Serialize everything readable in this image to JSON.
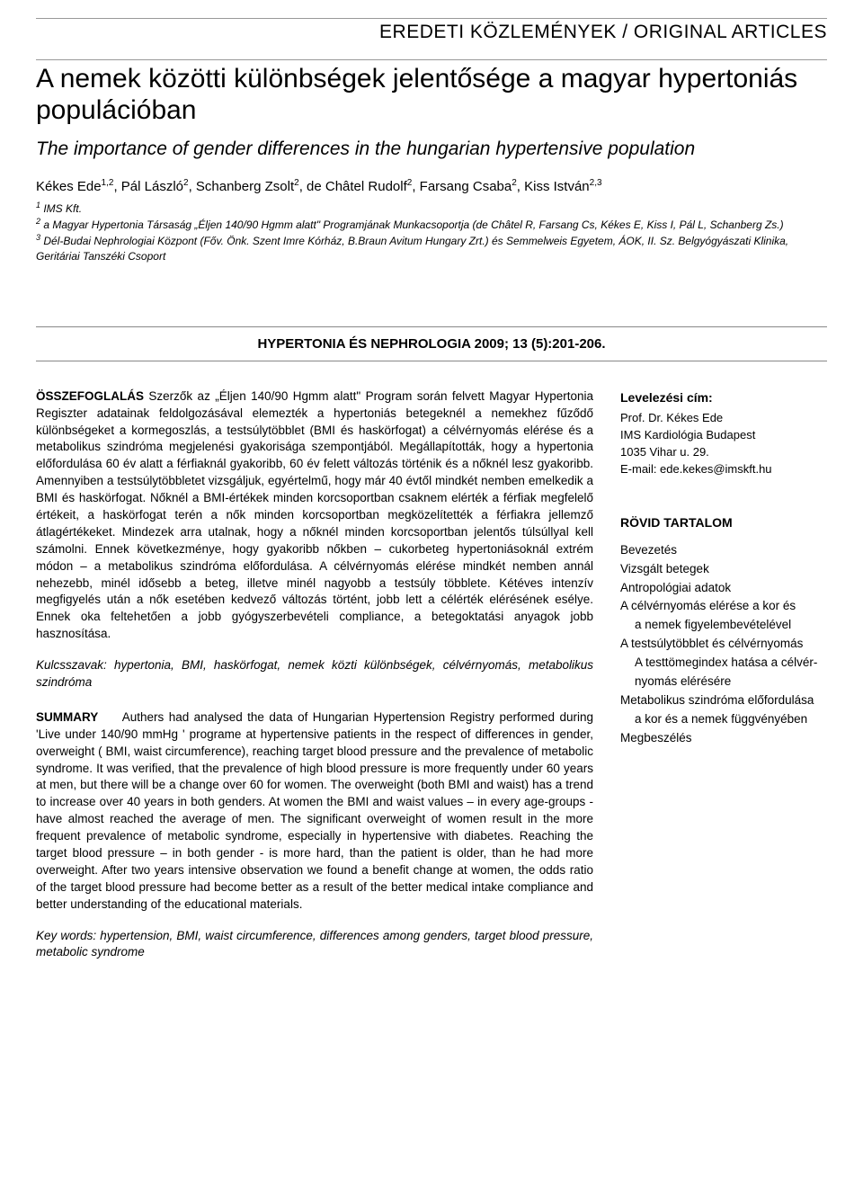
{
  "section_header": "EREDETI KÖZLEMÉNYEK / ORIGINAL ARTICLES",
  "title_hu": "A nemek közötti különbségek jelentősége a magyar hypertoniás populációban",
  "title_en": "The importance of gender differences in the hungarian hypertensive population",
  "authors_html": "Kékes Ede<sup>1,2</sup>, Pál László<sup>2</sup>, Schanberg Zsolt<sup>2</sup>, de Châtel Rudolf<sup>2</sup>, Farsang Csaba<sup>2</sup>, Kiss István<sup>2,3</sup>",
  "affiliations_html": "<sup>1</sup> IMS Kft.<br><sup>2</sup> a Magyar Hypertonia Társaság „Éljen 140/90 Hgmm alatt\" Programjának Munkacsoportja (de Châtel R, Farsang Cs, Kékes E, Kiss I, Pál L, Schanberg Zs.)<br><sup>3</sup> Dél-Budai Nephrologiai Központ (Főv. Önk. Szent Imre Kórház, B.Braun Avitum Hungary Zrt.) és Semmelweis Egyetem, ÁOK, II. Sz. Belgyógyászati Klinika, Geritáriai Tanszéki Csoport",
  "journal_ref": "HYPERTONIA ÉS NEPHROLOGIA 2009; 13 (5):201-206.",
  "abstract_hu_label": "ÖSSZEFOGLALÁS",
  "abstract_hu": "Szerzők az „Éljen 140/90 Hgmm alatt\" Program során felvett Magyar Hypertonia Regiszter adatainak feldolgozásával elemezték a hypertoniás betegeknél a nemekhez fűződő különbségeket a kormegoszlás, a testsúlytöbblet (BMI és haskörfogat) a célvérnyomás elérése és a metabolikus szindróma megjelenési gyakorisága szempontjából. Megállapították, hogy a hypertonia előfordulása 60 év alatt a férfiaknál gyakoribb, 60 év felett változás történik és a nőknél lesz gyakoribb. Amennyiben a testsúlytöbbletet vizsgáljuk, egyértelmű, hogy már 40 évtől mindkét nemben emelkedik a BMI és haskörfogat. Nőknél a BMI-értékek minden korcsoportban csaknem elérték a férfiak megfelelő értékeit, a haskörfogat terén a nők minden korcsoportban megközelítették a férfiakra jellemző átlagértékeket. Mindezek arra utalnak, hogy a nőknél minden korcsoportban jelentős túlsúllyal kell számolni. Ennek következménye, hogy gyakoribb nőkben – cukorbeteg hypertoniásoknál extrém módon – a metabolikus szindróma előfordulása. A célvérnyomás elérése mindkét nemben annál nehezebb, minél idősebb a beteg, illetve minél nagyobb a testsúly többlete. Kétéves intenzív megfigyelés után a nők esetében kedvező változás történt, jobb lett a célérték elérésének esélye. Ennek oka feltehetően a jobb gyógyszerbevételi compliance, a betegoktatási anyagok jobb hasznosítása.",
  "keywords_hu_label": "Kulcsszavak:",
  "keywords_hu": "hypertonia, BMI, haskörfogat, nemek közti különbségek, célvérnyomás, metabolikus szindróma",
  "abstract_en_label": "SUMMARY",
  "abstract_en": "Authers had analysed  the data of Hungarian Hypertension Registry performed during  'Live under 140/90 mmHg ' programe at hypertensive patients in the respect of  differences  in gender, overweight ( BMI, waist circumference),  reaching target blood pressure and the prevalence of metabolic syndrome. It was verified, that the prevalence of high blood pressure is more frequently under 60 years at men, but  there will be a change over 60 for women. The overweight  (both BMI and waist) has a trend to increase over 40 years in both genders. At women the BMI  and waist values – in every age-groups -  have almost reached the average of men. The significant overweight of women result in the more frequent prevalence of metabolic syndrome, especially in hypertensive with diabetes. Reaching the target blood pressure – in both gender -  is more hard, than the patient is older, than  he had more overweight. After two years intensive observation we found a benefit change at women, the odds ratio of  the target blood pressure  had become  better as a result of the better medical intake compliance and better understanding of the educational materials.",
  "keywords_en_label": "Key words:",
  "keywords_en": "hypertension, BMI, waist circumference, differences among genders, target blood pressure, metabolic syndrome",
  "correspondence": {
    "heading": "Levelezési cím:",
    "name": "Prof. Dr. Kékes Ede",
    "inst": "IMS Kardiológia Budapest",
    "addr": "1035 Vihar u. 29.",
    "email": "E-mail: ede.kekes@imskft.hu"
  },
  "toc": {
    "heading": "RÖVID TARTALOM",
    "items": [
      {
        "text": "Bevezetés",
        "indent": false
      },
      {
        "text": "Vizsgált betegek",
        "indent": false
      },
      {
        "text": "Antropológiai adatok",
        "indent": false
      },
      {
        "text": "A célvérnyomás elérése a kor és",
        "indent": false
      },
      {
        "text": "a nemek figyelembevételével",
        "indent": true
      },
      {
        "text": "A testsúlytöbblet és célvérnyomás",
        "indent": false
      },
      {
        "text": "A testtömegindex hatása a célvér-",
        "indent": true
      },
      {
        "text": "nyomás elérésére",
        "indent": true
      },
      {
        "text": "Metabolikus szindróma előfordulása",
        "indent": false
      },
      {
        "text": "a kor és a nemek függvényében",
        "indent": true
      },
      {
        "text": "Megbeszélés",
        "indent": false
      }
    ]
  }
}
